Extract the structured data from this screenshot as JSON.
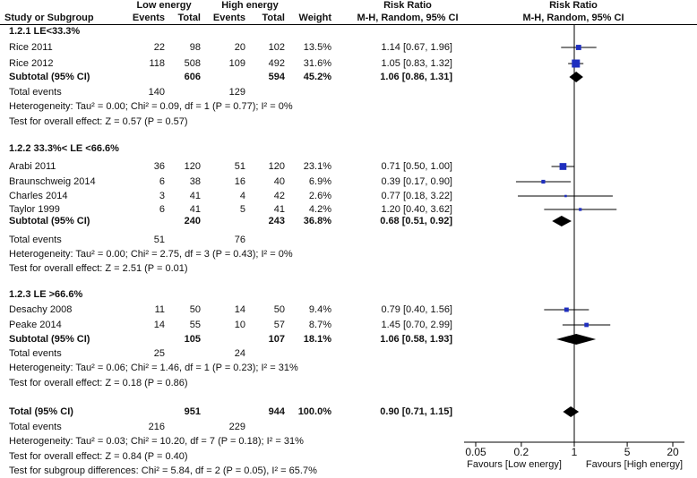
{
  "header": {
    "group1_name": "Low energy",
    "group2_name": "High energy",
    "rr_label1": "Risk Ratio",
    "rr_label2": "Risk Ratio",
    "col_study": "Study or Subgroup",
    "col_events1": "Events",
    "col_total1": "Total",
    "col_events2": "Events",
    "col_total2": "Total",
    "col_weight": "Weight",
    "col_ci": "M-H, Random, 95% CI",
    "col_plot": "M-H, Random, 95% CI"
  },
  "subgroups": [
    {
      "title": "1.2.1 LE<33.3%",
      "studies": [
        {
          "name": "Rice 2011",
          "e1": "22",
          "t1": "98",
          "e2": "20",
          "t2": "102",
          "weight": "13.5%",
          "ci": "1.14 [0.67, 1.96]"
        },
        {
          "name": "Rice 2012",
          "e1": "118",
          "t1": "508",
          "e2": "109",
          "t2": "492",
          "weight": "31.6%",
          "ci": "1.05 [0.83, 1.32]"
        }
      ],
      "subtotal": {
        "label": "Subtotal (95% CI)",
        "t1": "606",
        "t2": "594",
        "weight": "45.2%",
        "ci": "1.06 [0.86, 1.31]"
      },
      "total_events": {
        "label": "Total events",
        "e1": "140",
        "e2": "129"
      },
      "heterogeneity": "Heterogeneity: Tau² = 0.00; Chi² = 0.09, df = 1 (P = 0.77); I² = 0%",
      "overall": "Test for overall effect: Z = 0.57 (P = 0.57)"
    },
    {
      "title": "1.2.2 33.3%< LE <66.6%",
      "studies": [
        {
          "name": "Arabi 2011",
          "e1": "36",
          "t1": "120",
          "e2": "51",
          "t2": "120",
          "weight": "23.1%",
          "ci": "0.71 [0.50, 1.00]"
        },
        {
          "name": "Braunschweig 2014",
          "e1": "6",
          "t1": "38",
          "e2": "16",
          "t2": "40",
          "weight": "6.9%",
          "ci": "0.39 [0.17, 0.90]"
        },
        {
          "name": "Charles 2014",
          "e1": "3",
          "t1": "41",
          "e2": "4",
          "t2": "42",
          "weight": "2.6%",
          "ci": "0.77 [0.18, 3.22]"
        },
        {
          "name": "Taylor 1999",
          "e1": "6",
          "t1": "41",
          "e2": "5",
          "t2": "41",
          "weight": "4.2%",
          "ci": "1.20 [0.40, 3.62]"
        }
      ],
      "subtotal": {
        "label": "Subtotal (95% CI)",
        "t1": "240",
        "t2": "243",
        "weight": "36.8%",
        "ci": "0.68 [0.51, 0.92]"
      },
      "total_events": {
        "label": "Total events",
        "e1": "51",
        "e2": "76"
      },
      "heterogeneity": "Heterogeneity: Tau² = 0.00; Chi² = 2.75, df = 3 (P = 0.43); I² = 0%",
      "overall": "Test for overall effect: Z = 2.51 (P = 0.01)"
    },
    {
      "title": "1.2.3 LE >66.6%",
      "studies": [
        {
          "name": "Desachy 2008",
          "e1": "11",
          "t1": "50",
          "e2": "14",
          "t2": "50",
          "weight": "9.4%",
          "ci": "0.79 [0.40, 1.56]"
        },
        {
          "name": "Peake 2014",
          "e1": "14",
          "t1": "55",
          "e2": "10",
          "t2": "57",
          "weight": "8.7%",
          "ci": "1.45 [0.70, 2.99]"
        }
      ],
      "subtotal": {
        "label": "Subtotal (95% CI)",
        "t1": "105",
        "t2": "107",
        "weight": "18.1%",
        "ci": "1.06 [0.58, 1.93]"
      },
      "total_events": {
        "label": "Total events",
        "e1": "25",
        "e2": "24"
      },
      "heterogeneity": "Heterogeneity: Tau² = 0.06; Chi² = 1.46, df = 1 (P = 0.23); I² = 31%",
      "overall": "Test for overall effect: Z = 0.18 (P = 0.86)"
    }
  ],
  "total": {
    "label": "Total (95% CI)",
    "t1": "951",
    "t2": "944",
    "weight": "100.0%",
    "ci": "0.90 [0.71, 1.15]",
    "events_label": "Total events",
    "e1": "216",
    "e2": "229",
    "heterogeneity": "Heterogeneity: Tau² = 0.03; Chi² = 10.20, df = 7 (P = 0.18); I² = 31%",
    "overall": "Test for overall effect: Z = 0.84 (P = 0.40)",
    "subgroup_diff": "Test for subgroup differences: Chi² = 5.84, df = 2 (P = 0.05), I² = 65.7%"
  },
  "axis": {
    "ticks": [
      0.05,
      0.2,
      1,
      5,
      20
    ],
    "tick_labels": [
      "0.05",
      "0.2",
      "1",
      "5",
      "20"
    ],
    "favours_left": "Favours [Low energy]",
    "favours_right": "Favours [High energy]"
  },
  "colors": {
    "study_marker": "#1f2fbf",
    "diamond": "#000000",
    "line": "#000000"
  },
  "chart_data": {
    "type": "forest",
    "title": "Risk Ratio M-H, Random, 95% CI",
    "xscale": "log",
    "xlim": [
      0.05,
      20
    ],
    "xlabel_left": "Favours [Low energy]",
    "xlabel_right": "Favours [High energy]",
    "studies": [
      {
        "name": "Rice 2011",
        "rr": 1.14,
        "lo": 0.67,
        "hi": 1.96,
        "weight": 13.5
      },
      {
        "name": "Rice 2012",
        "rr": 1.05,
        "lo": 0.83,
        "hi": 1.32,
        "weight": 31.6
      },
      {
        "name": "Arabi 2011",
        "rr": 0.71,
        "lo": 0.5,
        "hi": 1.0,
        "weight": 23.1
      },
      {
        "name": "Braunschweig 2014",
        "rr": 0.39,
        "lo": 0.17,
        "hi": 0.9,
        "weight": 6.9
      },
      {
        "name": "Charles 2014",
        "rr": 0.77,
        "lo": 0.18,
        "hi": 3.22,
        "weight": 2.6
      },
      {
        "name": "Taylor 1999",
        "rr": 1.2,
        "lo": 0.4,
        "hi": 3.62,
        "weight": 4.2
      },
      {
        "name": "Desachy 2008",
        "rr": 0.79,
        "lo": 0.4,
        "hi": 1.56,
        "weight": 9.4
      },
      {
        "name": "Peake 2014",
        "rr": 1.45,
        "lo": 0.7,
        "hi": 2.99,
        "weight": 8.7
      }
    ],
    "pooled": [
      {
        "name": "Subtotal 1.2.1",
        "rr": 1.06,
        "lo": 0.86,
        "hi": 1.31
      },
      {
        "name": "Subtotal 1.2.2",
        "rr": 0.68,
        "lo": 0.51,
        "hi": 0.92
      },
      {
        "name": "Subtotal 1.2.3",
        "rr": 1.06,
        "lo": 0.58,
        "hi": 1.93
      },
      {
        "name": "Total",
        "rr": 0.9,
        "lo": 0.71,
        "hi": 1.15
      }
    ]
  }
}
